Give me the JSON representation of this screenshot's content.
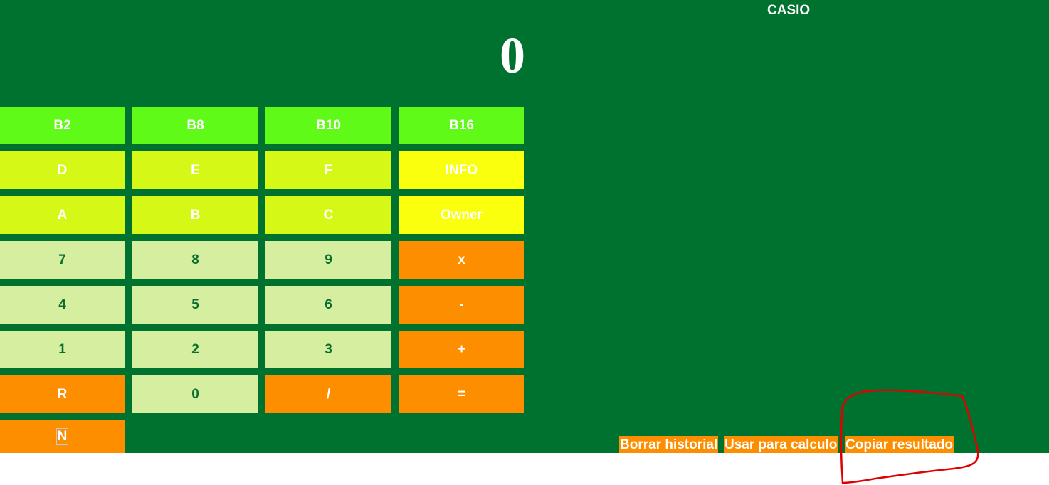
{
  "header": {
    "brand": "CASIO"
  },
  "display": {
    "value": "0"
  },
  "keypad": {
    "b2": "B2",
    "b8": "B8",
    "b10": "B10",
    "b16": "B16",
    "d": "D",
    "e": "E",
    "f": "F",
    "info": "INFO",
    "a": "A",
    "b": "B",
    "c": "C",
    "owner": "Owner",
    "n7": "7",
    "n8": "8",
    "n9": "9",
    "mul": "x",
    "n4": "4",
    "n5": "5",
    "n6": "6",
    "sub": "-",
    "n1": "1",
    "n2": "2",
    "n3": "3",
    "add": "+",
    "r": "R",
    "n0": "0",
    "div": "/",
    "eq": "=",
    "n": "N"
  },
  "history": {
    "clear_label": "Borrar historial",
    "use_label": "Usar para calculo",
    "copy_label": "Copiar resultado"
  },
  "colors": {
    "background": "#007230",
    "base_key": "#5ffa17",
    "hex_key": "#d6f817",
    "info_key": "#f9ff0c",
    "number_key": "#d6eea0",
    "operator_key": "#fd8e00",
    "annotation": "#e00000"
  }
}
